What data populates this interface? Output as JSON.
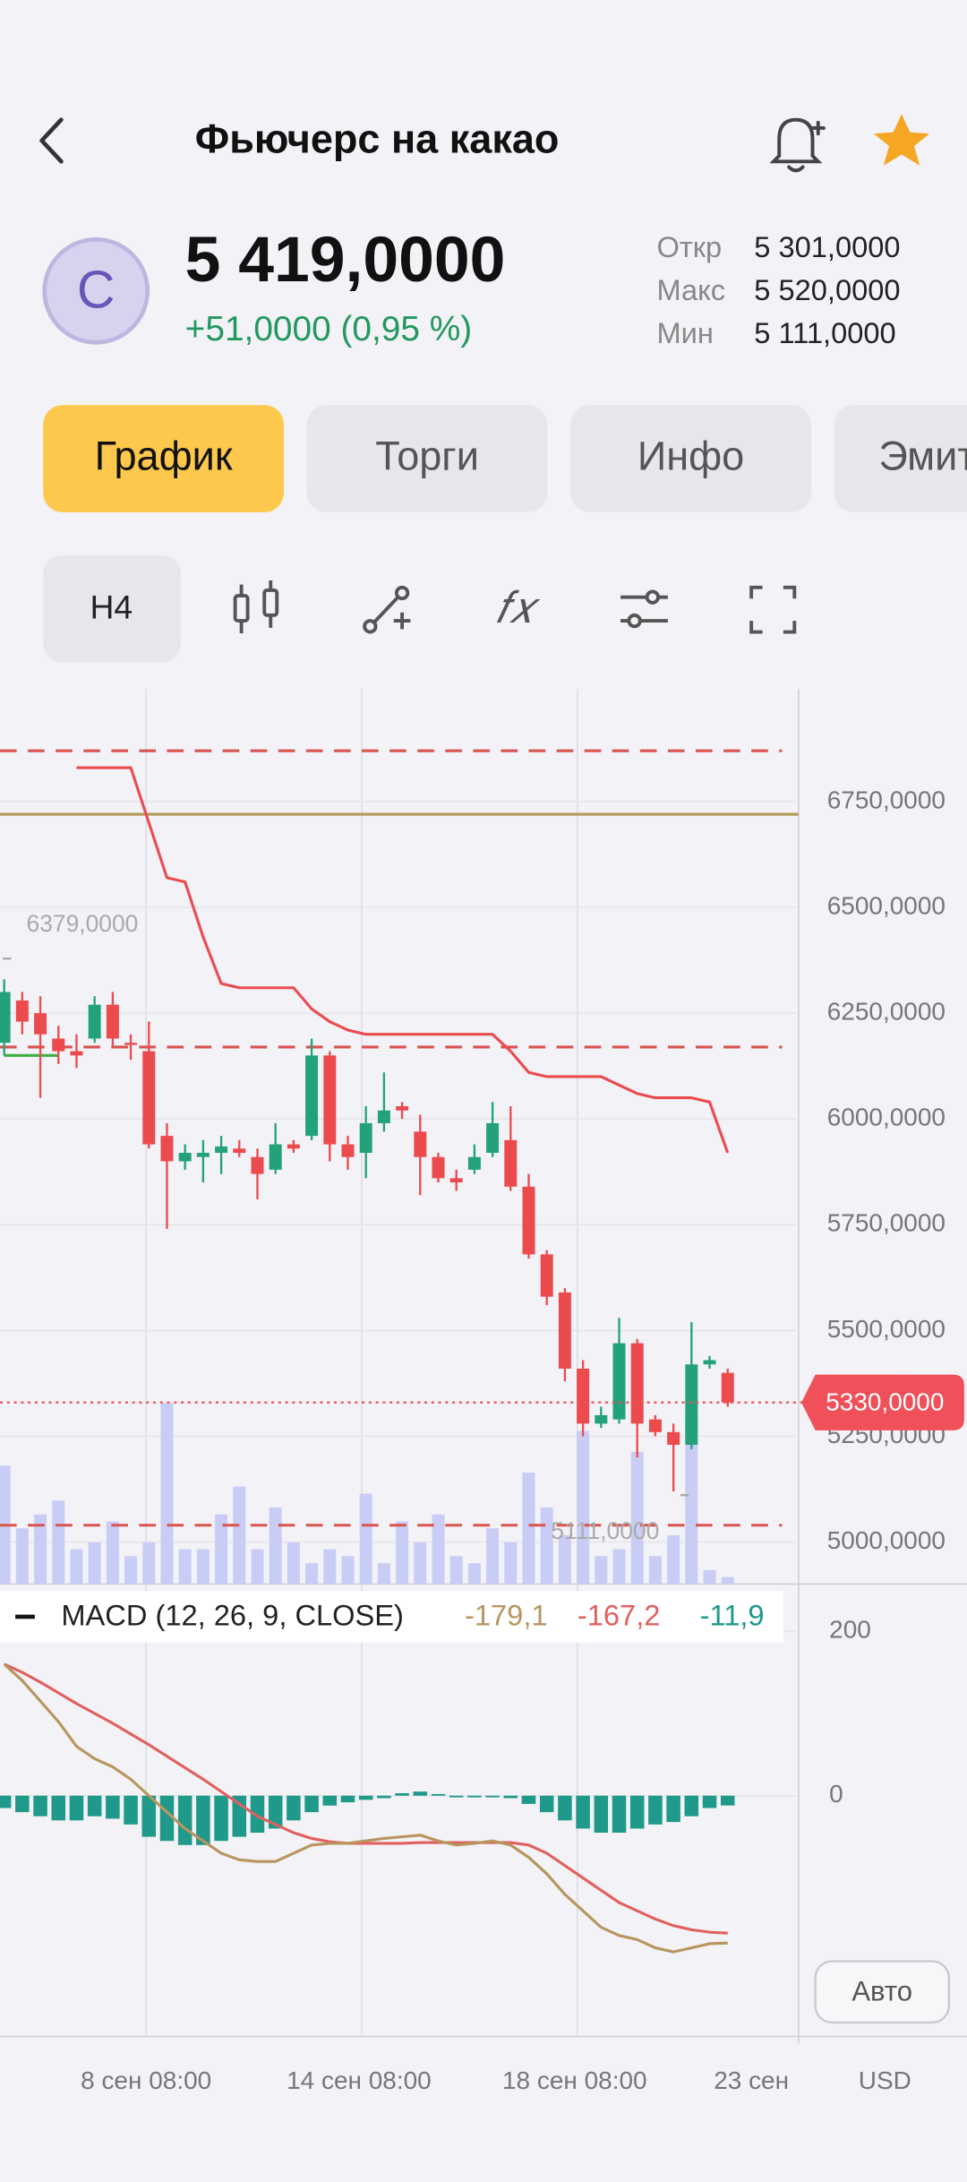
{
  "header": {
    "title": "Фьючерс на какао"
  },
  "quote": {
    "avatar_letter": "C",
    "price": "5 419,0000",
    "change": "+51,0000 (0,95 %)",
    "stats": [
      {
        "label": "Откр",
        "value": "5 301,0000"
      },
      {
        "label": "Макс",
        "value": "5 520,0000"
      },
      {
        "label": "Мин",
        "value": "5 111,0000"
      }
    ]
  },
  "tabs": [
    "График",
    "Торги",
    "Инфо",
    "Эмит"
  ],
  "toolbar": {
    "interval": "H4"
  },
  "chart": {
    "ylim": [
      4901,
      7016
    ],
    "yticks": [
      {
        "value": 6750,
        "label": "6750,0000"
      },
      {
        "value": 6500,
        "label": "6500,0000"
      },
      {
        "value": 6250,
        "label": "6250,0000"
      },
      {
        "value": 6000,
        "label": "6000,0000"
      },
      {
        "value": 5750,
        "label": "5750,0000"
      },
      {
        "value": 5500,
        "label": "5500,0000"
      },
      {
        "value": 5250,
        "label": "5250,0000"
      },
      {
        "value": 5000,
        "label": "5000,0000"
      }
    ],
    "candles": {
      "open": [
        6180,
        6280,
        6250,
        6190,
        6160,
        6190,
        6270,
        6180,
        6160,
        5960,
        5900,
        5910,
        5920,
        5930,
        5910,
        5880,
        5940,
        5960,
        6150,
        5940,
        5920,
        5990,
        6030,
        5970,
        5910,
        5860,
        5880,
        5920,
        5950,
        5840,
        5680,
        5590,
        5410,
        5280,
        5290,
        5470,
        5290,
        5260,
        5230,
        5420,
        5400
      ],
      "high": [
        6330,
        6300,
        6290,
        6220,
        6200,
        6290,
        6300,
        6200,
        6230,
        5990,
        5940,
        5950,
        5960,
        5950,
        5930,
        5990,
        5950,
        6190,
        6160,
        5960,
        6030,
        6110,
        6040,
        6010,
        5920,
        5880,
        5940,
        6040,
        6030,
        5870,
        5690,
        5600,
        5430,
        5320,
        5530,
        5480,
        5300,
        5280,
        5520,
        5440,
        5410
      ],
      "low": [
        6150,
        6200,
        6050,
        6130,
        6120,
        6180,
        6170,
        6140,
        5930,
        5740,
        5880,
        5850,
        5870,
        5910,
        5810,
        5870,
        5920,
        5950,
        5900,
        5880,
        5860,
        5970,
        6000,
        5820,
        5850,
        5830,
        5870,
        5910,
        5830,
        5670,
        5560,
        5380,
        5250,
        5270,
        5280,
        5200,
        5250,
        5120,
        5220,
        5410,
        5320
      ],
      "close": [
        6300,
        6230,
        6200,
        6160,
        6150,
        6270,
        6190,
        6175,
        5940,
        5900,
        5920,
        5920,
        5935,
        5920,
        5870,
        5940,
        5930,
        6150,
        5940,
        5910,
        5990,
        6020,
        6020,
        5910,
        5860,
        5850,
        5910,
        5990,
        5840,
        5680,
        5580,
        5410,
        5280,
        5300,
        5470,
        5280,
        5260,
        5230,
        5420,
        5430,
        5330
      ],
      "up_color": "#23a27a",
      "down_color": "#ec4b4e"
    },
    "volume": {
      "values": [
        85,
        40,
        50,
        60,
        25,
        30,
        45,
        20,
        30,
        130,
        25,
        25,
        50,
        70,
        25,
        55,
        30,
        15,
        25,
        20,
        65,
        15,
        45,
        30,
        50,
        20,
        15,
        40,
        30,
        80,
        55,
        35,
        110,
        20,
        25,
        95,
        20,
        35,
        120,
        10,
        5
      ],
      "color": "#c9cdf5"
    },
    "stop_line": {
      "color": "#ec4b4e",
      "values": [
        null,
        null,
        null,
        null,
        6830,
        6830,
        6830,
        6830,
        6700,
        6570,
        6560,
        6430,
        6320,
        6310,
        6310,
        6310,
        6310,
        6260,
        6230,
        6210,
        6200,
        6200,
        6200,
        6200,
        6200,
        6200,
        6200,
        6200,
        6160,
        6110,
        6100,
        6100,
        6100,
        6100,
        6080,
        6060,
        6050,
        6050,
        6050,
        6040,
        5920
      ]
    },
    "green_line": {
      "color": "#3cb043",
      "values": [
        6150,
        6150,
        6150,
        6150,
        null,
        null,
        null,
        null,
        null,
        null,
        null,
        null,
        null,
        null,
        null,
        null,
        null,
        null,
        null,
        null,
        null,
        null,
        null,
        null,
        null,
        null,
        null,
        null,
        null,
        null,
        null,
        null,
        null,
        null,
        null,
        null,
        null,
        null,
        null,
        null,
        null
      ]
    },
    "dashed_levels": {
      "color": "#d9534f",
      "values": [
        6870,
        6170,
        5040
      ]
    },
    "gold_level": {
      "color": "#b29b58",
      "value": 6720
    },
    "current_price": {
      "value": 5330,
      "label": "5330,0000",
      "color": "#f0505a"
    },
    "high_marker": {
      "value": 6379,
      "label": "6379,0000"
    },
    "low_marker": {
      "value": 5111,
      "label": "5111,0000"
    },
    "x_labels": [
      "8 сен 08:00",
      "14 сен 08:00",
      "18 сен 08:00",
      "23 сен"
    ],
    "currency": "USD",
    "scale_button": "Авто",
    "macd": {
      "legend": "MACD (12, 26, 9, CLOSE)",
      "value_labels": [
        "-179,1",
        "-167,2",
        "-11,9"
      ],
      "ylim": [
        -291,
        254
      ],
      "yticks": [
        200,
        0
      ],
      "macd": {
        "color": "#b8955e",
        "values": [
          160,
          140,
          115,
          90,
          60,
          45,
          35,
          20,
          0,
          -20,
          -40,
          -55,
          -70,
          -78,
          -80,
          -80,
          -70,
          -60,
          -58,
          -58,
          -55,
          -52,
          -50,
          -48,
          -55,
          -60,
          -58,
          -55,
          -60,
          -75,
          -95,
          -120,
          -140,
          -160,
          -170,
          -175,
          -185,
          -190,
          -185,
          -180,
          -179.1
        ]
      },
      "signal": {
        "color": "#e0605e",
        "values": [
          160,
          150,
          138,
          125,
          112,
          100,
          88,
          75,
          62,
          48,
          34,
          20,
          5,
          -10,
          -25,
          -35,
          -45,
          -52,
          -56,
          -58,
          -58,
          -58,
          -58,
          -57,
          -57,
          -57,
          -57,
          -57,
          -57,
          -60,
          -70,
          -85,
          -100,
          -115,
          -130,
          -140,
          -150,
          -158,
          -163,
          -166,
          -167.2
        ]
      },
      "histogram": {
        "color": "#1f9a8a",
        "values": [
          -15,
          -20,
          -25,
          -30,
          -30,
          -25,
          -28,
          -35,
          -50,
          -55,
          -60,
          -60,
          -55,
          -50,
          -45,
          -40,
          -30,
          -20,
          -12,
          -8,
          -5,
          -3,
          3,
          5,
          2,
          -2,
          -2,
          -2,
          -3,
          -10,
          -20,
          -30,
          -40,
          -45,
          -45,
          -40,
          -35,
          -32,
          -25,
          -15,
          -11.9
        ]
      }
    }
  }
}
